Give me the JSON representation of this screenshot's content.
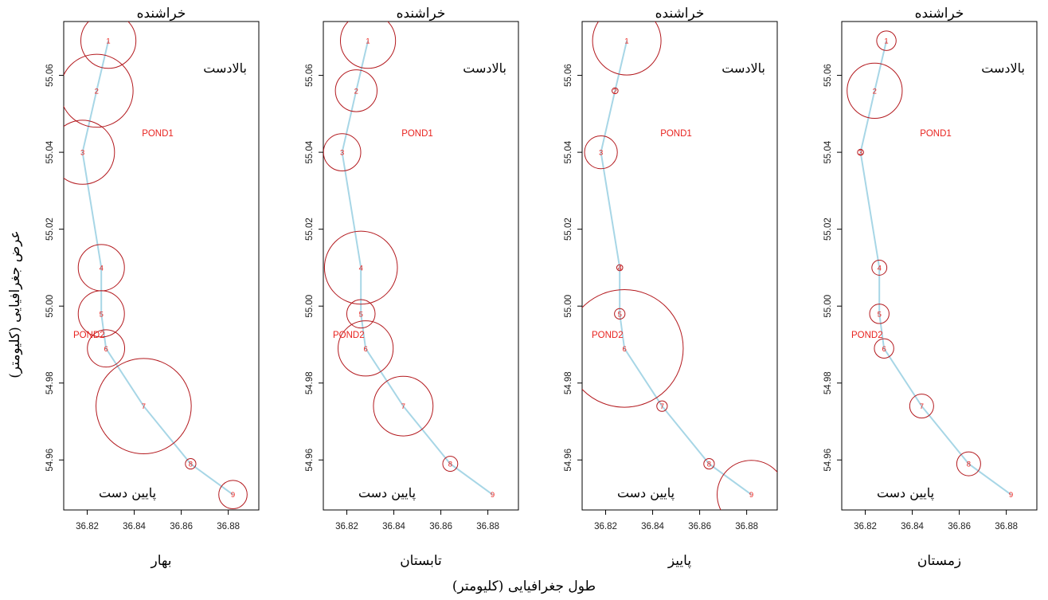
{
  "figure": {
    "xlabel": "طول جغرافیایی (کلیومتر)",
    "ylabel": "عرض جغرافیایی (کلیومتر)"
  },
  "chart_data": [
    {
      "type": "scatter",
      "title": "خراشنده",
      "xlabel": "بهار",
      "annotations": {
        "upstream": "بالادست",
        "downstream": "پایین دست",
        "pond1": "POND1",
        "pond2": "POND2"
      },
      "xlim": [
        36.81,
        36.893
      ],
      "ylim": [
        54.947,
        55.074
      ],
      "xticks": [
        "36.82",
        "36.84",
        "36.86",
        "36.88"
      ],
      "yticks": [
        "54.96",
        "54.98",
        "55.00",
        "55.02",
        "55.04",
        "55.06"
      ],
      "x": [
        36.829,
        36.824,
        36.818,
        36.826,
        36.826,
        36.828,
        36.844,
        36.864,
        36.882
      ],
      "y": [
        55.069,
        55.056,
        55.04,
        55.01,
        54.998,
        54.989,
        54.974,
        54.959,
        54.951
      ],
      "labels": [
        "1",
        "2",
        "3",
        "4",
        "5",
        "6",
        "7",
        "8",
        "9"
      ],
      "circle_size": [
        12,
        16,
        14,
        10,
        10,
        8,
        21,
        2,
        6
      ]
    },
    {
      "type": "scatter",
      "title": "خراشنده",
      "xlabel": "تابستان",
      "annotations": {
        "upstream": "بالادست",
        "downstream": "پایین دست",
        "pond1": "POND1",
        "pond2": "POND2"
      },
      "xlim": [
        36.81,
        36.893
      ],
      "ylim": [
        54.947,
        55.074
      ],
      "xticks": [
        "36.82",
        "36.84",
        "36.86",
        "36.88"
      ],
      "yticks": [
        "54.96",
        "54.98",
        "55.00",
        "55.02",
        "55.04",
        "55.06"
      ],
      "x": [
        36.829,
        36.824,
        36.818,
        36.826,
        36.826,
        36.828,
        36.844,
        36.864,
        36.882
      ],
      "y": [
        55.069,
        55.056,
        55.04,
        55.01,
        54.998,
        54.989,
        54.974,
        54.959,
        54.951
      ],
      "labels": [
        "1",
        "2",
        "3",
        "4",
        "5",
        "6",
        "7",
        "8",
        "9"
      ],
      "circle_size": [
        12,
        9,
        8,
        16,
        6,
        12,
        13,
        3,
        0
      ]
    },
    {
      "type": "scatter",
      "title": "خراشنده",
      "xlabel": "پاییز",
      "annotations": {
        "upstream": "بالادست",
        "downstream": "پایین دست",
        "pond1": "POND1",
        "pond2": "POND2"
      },
      "xlim": [
        36.81,
        36.893
      ],
      "ylim": [
        54.947,
        55.074
      ],
      "xticks": [
        "36.82",
        "36.84",
        "36.86",
        "36.88"
      ],
      "yticks": [
        "54.96",
        "54.98",
        "55.00",
        "55.02",
        "55.04",
        "55.06"
      ],
      "x": [
        36.829,
        36.824,
        36.818,
        36.826,
        36.826,
        36.828,
        36.844,
        36.864,
        36.882
      ],
      "y": [
        55.069,
        55.056,
        55.04,
        55.01,
        54.998,
        54.989,
        54.974,
        54.959,
        54.951
      ],
      "labels": [
        "1",
        "2",
        "3",
        "4",
        "5",
        "6",
        "7",
        "8",
        "9"
      ],
      "circle_size": [
        15,
        1,
        7,
        1,
        2,
        26,
        2,
        2,
        15
      ]
    },
    {
      "type": "scatter",
      "title": "خراشنده",
      "xlabel": "زمستان",
      "annotations": {
        "upstream": "بالادست",
        "downstream": "پایین دست",
        "pond1": "POND1",
        "pond2": "POND2"
      },
      "xlim": [
        36.81,
        36.893
      ],
      "ylim": [
        54.947,
        55.074
      ],
      "xticks": [
        "36.82",
        "36.84",
        "36.86",
        "36.88"
      ],
      "yticks": [
        "54.96",
        "54.98",
        "55.00",
        "55.02",
        "55.04",
        "55.06"
      ],
      "x": [
        36.829,
        36.824,
        36.818,
        36.826,
        36.826,
        36.828,
        36.844,
        36.864,
        36.882
      ],
      "y": [
        55.069,
        55.056,
        55.04,
        55.01,
        54.998,
        54.989,
        54.974,
        54.959,
        54.951
      ],
      "labels": [
        "1",
        "2",
        "3",
        "4",
        "5",
        "6",
        "7",
        "8",
        "9"
      ],
      "circle_size": [
        4,
        12,
        1,
        3,
        4,
        4,
        5,
        5,
        0
      ]
    }
  ]
}
